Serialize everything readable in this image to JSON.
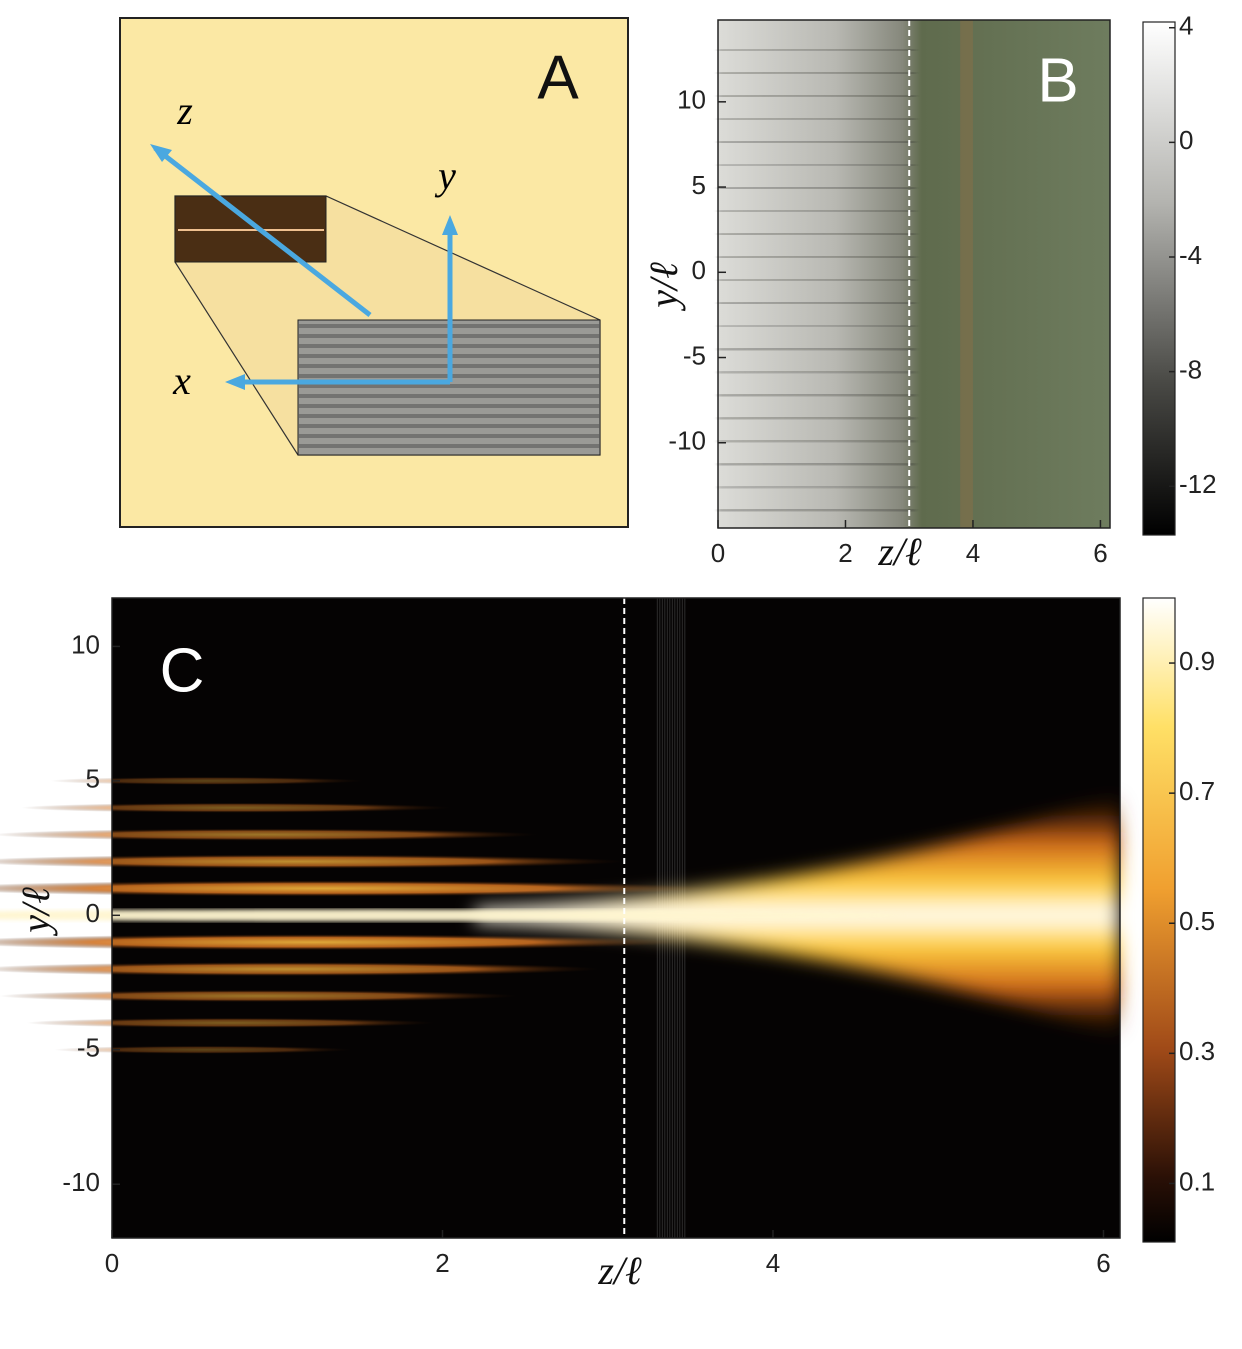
{
  "diagram": {
    "label": "A",
    "axes": [
      "z",
      "y",
      "x"
    ]
  },
  "chart_data": [
    {
      "type": "heatmap",
      "panel_label": "B",
      "xlabel": "z/ℓ",
      "ylabel": "y/ℓ",
      "xlim": [
        0,
        6.15
      ],
      "xticks": [
        0,
        2,
        4,
        6
      ],
      "ylim": [
        -15,
        14.8
      ],
      "yticks": [
        -10,
        -5,
        0,
        5,
        10
      ],
      "marker_x": 3,
      "colormap": "gray",
      "colorbar": {
        "lim": [
          -13.7,
          4.2
        ],
        "ticks": [
          4,
          0,
          -4,
          -8,
          -12
        ]
      }
    },
    {
      "type": "heatmap",
      "panel_label": "C",
      "xlabel": "z/ℓ",
      "ylabel": "y/ℓ",
      "xlim": [
        0,
        6.1
      ],
      "xticks": [
        0,
        2,
        4,
        6
      ],
      "ylim": [
        -12,
        11.8
      ],
      "yticks": [
        -10,
        -5,
        0,
        5,
        10
      ],
      "marker_x": 3.1,
      "colormap": "hot",
      "colorbar": {
        "lim": [
          0.01,
          1
        ],
        "ticks": [
          0.1,
          0.3,
          0.5,
          0.7,
          0.9
        ]
      }
    }
  ]
}
